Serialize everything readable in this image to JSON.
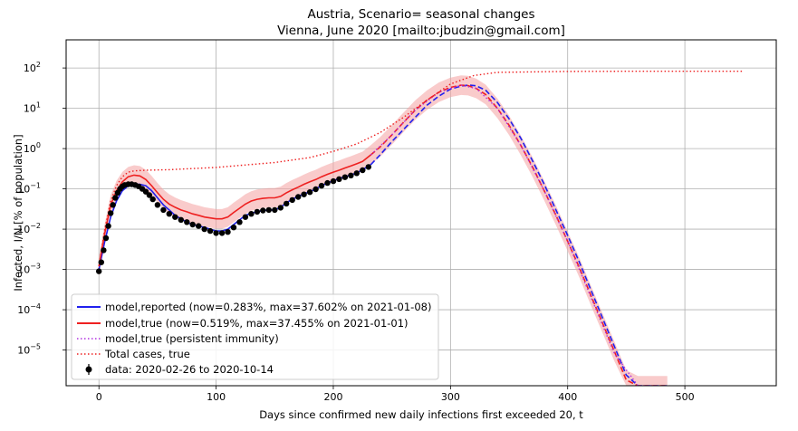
{
  "chart_data": {
    "type": "line",
    "title": "Austria, Scenario= seasonal changes",
    "subtitle": "Vienna, June 2020 [mailto:jbudzin@gmail.com]",
    "xlabel": "Days since confirmed new daily infections first exceeded 20, t",
    "ylabel": "Infected, I/N [% of population]",
    "y_scale": "log",
    "grid": true,
    "legend_position": "lower-left",
    "xlim": [
      -28,
      578
    ],
    "ylim": [
      1.3e-06,
      500
    ],
    "x_ticks": [
      0,
      100,
      200,
      300,
      400,
      500
    ],
    "x_tick_labels": [
      "0",
      "100",
      "200",
      "300",
      "400",
      "500"
    ],
    "y_ticks": [
      1e-05,
      0.0001,
      0.001,
      0.01,
      0.1,
      1,
      10,
      100
    ],
    "y_tick_labels": [
      {
        "base": "10",
        "exp": "−5"
      },
      {
        "base": "10",
        "exp": "−4"
      },
      {
        "base": "10",
        "exp": "−3"
      },
      {
        "base": "10",
        "exp": "−2"
      },
      {
        "base": "10",
        "exp": "−1"
      },
      {
        "base": "10",
        "exp": "0"
      },
      {
        "base": "10",
        "exp": "1"
      },
      {
        "base": "10",
        "exp": "2"
      }
    ],
    "colors": {
      "reported": "#2020ee",
      "true": "#ee2020",
      "band": "#f4a0a0",
      "persistent": "#b030e0",
      "total": "#ee2020",
      "data": "#000000"
    },
    "series": [
      {
        "name": "model,reported (now=0.283%, max=37.602% on 2021-01-08)",
        "style": "solid-then-dashed",
        "solid_until_x": 232,
        "x": [
          0,
          5,
          10,
          15,
          20,
          25,
          30,
          35,
          40,
          45,
          50,
          55,
          60,
          65,
          70,
          75,
          80,
          85,
          90,
          95,
          100,
          105,
          110,
          115,
          120,
          125,
          130,
          135,
          140,
          145,
          150,
          155,
          160,
          165,
          170,
          175,
          180,
          185,
          190,
          195,
          200,
          205,
          210,
          215,
          220,
          225,
          232,
          240,
          250,
          260,
          270,
          280,
          290,
          300,
          310,
          316,
          322,
          330,
          340,
          350,
          360,
          370,
          380,
          390,
          400,
          410,
          420,
          430,
          440,
          450,
          460,
          470,
          480,
          487
        ],
        "y": [
          0.001,
          0.005,
          0.02,
          0.05,
          0.09,
          0.12,
          0.13,
          0.13,
          0.12,
          0.09,
          0.06,
          0.04,
          0.03,
          0.022,
          0.018,
          0.015,
          0.013,
          0.012,
          0.011,
          0.01,
          0.009,
          0.009,
          0.01,
          0.013,
          0.017,
          0.022,
          0.025,
          0.027,
          0.029,
          0.03,
          0.03,
          0.035,
          0.045,
          0.055,
          0.065,
          0.075,
          0.085,
          0.1,
          0.12,
          0.14,
          0.16,
          0.18,
          0.2,
          0.22,
          0.25,
          0.3,
          0.4,
          0.7,
          1.5,
          3.0,
          6.0,
          12.0,
          20.0,
          30.0,
          36.0,
          37.6,
          36.0,
          28.0,
          14.0,
          5.5,
          1.8,
          0.5,
          0.13,
          0.03,
          0.007,
          0.0015,
          0.0003,
          6e-05,
          1.2e-05,
          2.4e-06,
          1.3e-06,
          1.3e-06,
          1.3e-06,
          1.3e-06
        ]
      },
      {
        "name": "model,true (now=0.519%, max=37.455% on 2021-01-01)",
        "style": "solid-then-dashed",
        "solid_until_x": 232,
        "x": [
          0,
          5,
          10,
          15,
          20,
          25,
          30,
          35,
          40,
          45,
          50,
          55,
          60,
          65,
          70,
          75,
          80,
          85,
          90,
          95,
          100,
          105,
          110,
          115,
          120,
          125,
          130,
          135,
          140,
          145,
          150,
          155,
          160,
          165,
          170,
          175,
          180,
          185,
          190,
          195,
          200,
          205,
          210,
          215,
          220,
          225,
          232,
          240,
          250,
          260,
          270,
          280,
          290,
          300,
          309,
          315,
          322,
          330,
          340,
          350,
          360,
          370,
          380,
          390,
          400,
          410,
          420,
          430,
          440,
          450,
          460,
          470,
          480,
          485
        ],
        "y": [
          0.0012,
          0.008,
          0.04,
          0.09,
          0.15,
          0.2,
          0.22,
          0.21,
          0.17,
          0.12,
          0.08,
          0.055,
          0.042,
          0.035,
          0.03,
          0.027,
          0.024,
          0.022,
          0.02,
          0.019,
          0.018,
          0.018,
          0.02,
          0.026,
          0.033,
          0.042,
          0.05,
          0.055,
          0.058,
          0.06,
          0.06,
          0.065,
          0.08,
          0.095,
          0.11,
          0.13,
          0.15,
          0.17,
          0.2,
          0.23,
          0.26,
          0.29,
          0.33,
          0.37,
          0.42,
          0.48,
          0.7,
          1.1,
          2.2,
          4.5,
          9.0,
          16.0,
          25.0,
          33.0,
          37.4,
          36.5,
          31.0,
          22.0,
          10.0,
          3.8,
          1.2,
          0.35,
          0.09,
          0.022,
          0.005,
          0.0011,
          0.00022,
          4.5e-05,
          9e-06,
          1.8e-06,
          1.3e-06,
          1.3e-06,
          1.3e-06,
          1.3e-06
        ]
      },
      {
        "name": "model,true (persistent immunity)",
        "style": "dotted",
        "x": [
          232,
          250,
          270,
          290,
          309,
          322,
          340,
          360,
          380,
          400,
          420,
          440,
          460,
          476
        ],
        "y": [
          0.7,
          2.2,
          9.0,
          25.0,
          37.4,
          31.0,
          10.0,
          1.2,
          0.09,
          0.005,
          0.0002,
          8e-06,
          3e-07,
          1.3e-06
        ]
      },
      {
        "name": "Total cases, true",
        "style": "dotted",
        "x": [
          0,
          5,
          10,
          15,
          20,
          25,
          30,
          40,
          60,
          100,
          150,
          180,
          200,
          220,
          240,
          260,
          280,
          300,
          320,
          340,
          400,
          450,
          500,
          550
        ],
        "y": [
          0.0012,
          0.01,
          0.05,
          0.12,
          0.2,
          0.26,
          0.28,
          0.29,
          0.3,
          0.34,
          0.45,
          0.6,
          0.85,
          1.3,
          2.5,
          6.0,
          16.0,
          40.0,
          65.0,
          78.0,
          82.0,
          83.0,
          83.0,
          83.0
        ]
      },
      {
        "name": "data: 2020-02-26 to 2020-10-14",
        "style": "markers",
        "x": [
          0,
          2,
          4,
          6,
          8,
          10,
          12,
          14,
          16,
          18,
          20,
          22,
          25,
          28,
          31,
          34,
          37,
          40,
          43,
          46,
          50,
          55,
          60,
          65,
          70,
          75,
          80,
          85,
          90,
          95,
          100,
          105,
          110,
          115,
          120,
          125,
          130,
          135,
          140,
          145,
          150,
          155,
          160,
          165,
          170,
          175,
          180,
          185,
          190,
          195,
          200,
          205,
          210,
          215,
          220,
          225,
          230
        ],
        "y": [
          0.0009,
          0.0015,
          0.003,
          0.006,
          0.012,
          0.025,
          0.04,
          0.06,
          0.08,
          0.1,
          0.115,
          0.125,
          0.13,
          0.13,
          0.125,
          0.115,
          0.1,
          0.085,
          0.07,
          0.055,
          0.04,
          0.03,
          0.024,
          0.02,
          0.017,
          0.015,
          0.013,
          0.012,
          0.01,
          0.009,
          0.008,
          0.008,
          0.0085,
          0.011,
          0.015,
          0.02,
          0.024,
          0.027,
          0.029,
          0.03,
          0.03,
          0.034,
          0.043,
          0.053,
          0.063,
          0.073,
          0.083,
          0.098,
          0.12,
          0.14,
          0.155,
          0.175,
          0.195,
          0.215,
          0.245,
          0.29,
          0.35
        ]
      }
    ]
  }
}
